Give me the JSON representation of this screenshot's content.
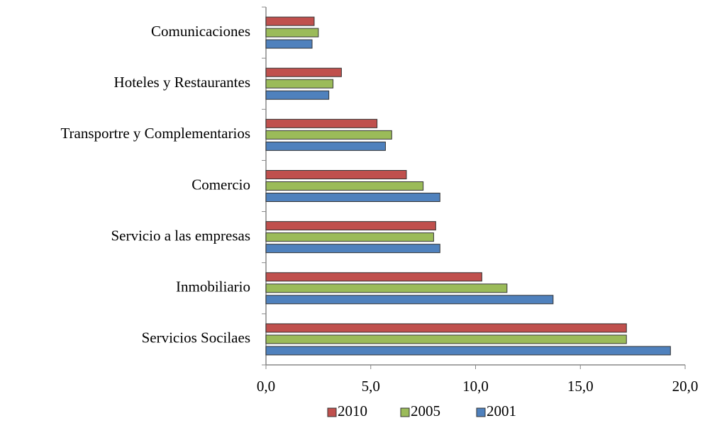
{
  "chart_data": {
    "type": "bar",
    "orientation": "horizontal",
    "categories": [
      "Comunicaciones",
      "Hoteles y Restaurantes",
      "Transportre y Complementarios",
      "Comercio",
      "Servicio a las empresas",
      "Inmobiliario",
      "Servicios Socilaes"
    ],
    "series": [
      {
        "name": "2010",
        "color": "#c0504d",
        "values": [
          2.3,
          3.6,
          5.3,
          6.7,
          8.1,
          10.3,
          17.2
        ]
      },
      {
        "name": "2005",
        "color": "#9bbb59",
        "values": [
          2.5,
          3.2,
          6.0,
          7.5,
          8.0,
          11.5,
          17.2
        ]
      },
      {
        "name": "2001",
        "color": "#4f81bd",
        "values": [
          2.2,
          3.0,
          5.7,
          8.3,
          8.3,
          13.7,
          19.3
        ]
      }
    ],
    "xlim": [
      0,
      20
    ],
    "xticks": [
      {
        "value": 0,
        "label": "0,0"
      },
      {
        "value": 5,
        "label": "5,0"
      },
      {
        "value": 10,
        "label": "10,0"
      },
      {
        "value": 15,
        "label": "15,0"
      },
      {
        "value": 20,
        "label": "20,0"
      }
    ],
    "legend": "bottom"
  }
}
